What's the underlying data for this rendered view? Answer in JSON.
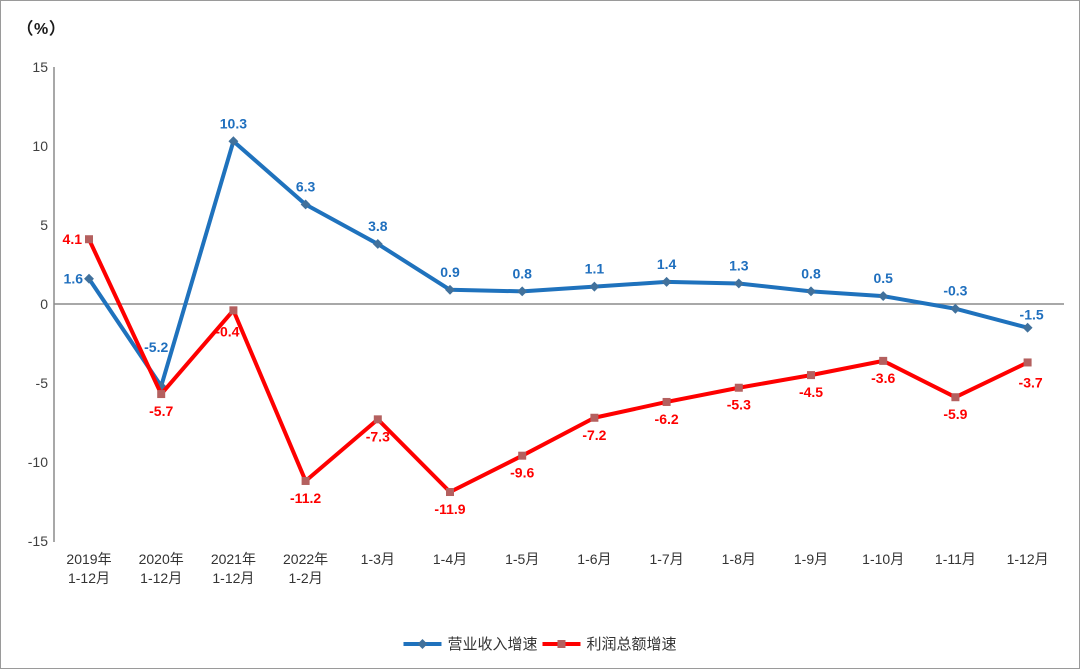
{
  "chart_data": {
    "type": "line",
    "title": "",
    "ylabel": "（%）",
    "xlabel": "",
    "ylim": [
      -15,
      15
    ],
    "y_ticks": [
      15,
      10,
      5,
      0,
      -5,
      -10,
      -15
    ],
    "grid": "zero-line-only",
    "legend_position": "bottom-center",
    "categories": [
      [
        "2019年",
        "1-12月"
      ],
      [
        "2020年",
        "1-12月"
      ],
      [
        "2021年",
        "1-12月"
      ],
      [
        "2022年",
        "1-2月"
      ],
      [
        "1-3月"
      ],
      [
        "1-4月"
      ],
      [
        "1-5月"
      ],
      [
        "1-6月"
      ],
      [
        "1-7月"
      ],
      [
        "1-8月"
      ],
      [
        "1-9月"
      ],
      [
        "1-10月"
      ],
      [
        "1-11月"
      ],
      [
        "1-12月"
      ]
    ],
    "series": [
      {
        "name": "营业收入增速",
        "color": "#1f72bd",
        "label_color": "#1f6fbe",
        "marker": "diamond",
        "marker_color": "#41719c",
        "values": [
          1.6,
          -5.2,
          10.3,
          6.3,
          3.8,
          0.9,
          0.8,
          1.1,
          1.4,
          1.3,
          0.8,
          0.5,
          -0.3,
          -1.5
        ]
      },
      {
        "name": "利润总额增速",
        "color": "#fe0000",
        "label_color": "#fe0000",
        "marker": "square",
        "marker_color": "#b4605f",
        "values": [
          4.1,
          -5.7,
          -0.4,
          -11.2,
          -7.3,
          -11.9,
          -9.6,
          -7.2,
          -6.2,
          -5.3,
          -4.5,
          -3.6,
          -5.9,
          -3.7
        ]
      }
    ],
    "axis_color": "#8c8c8c",
    "tick_label_color": "#3f3f3f",
    "category_label_color": "#333333"
  }
}
